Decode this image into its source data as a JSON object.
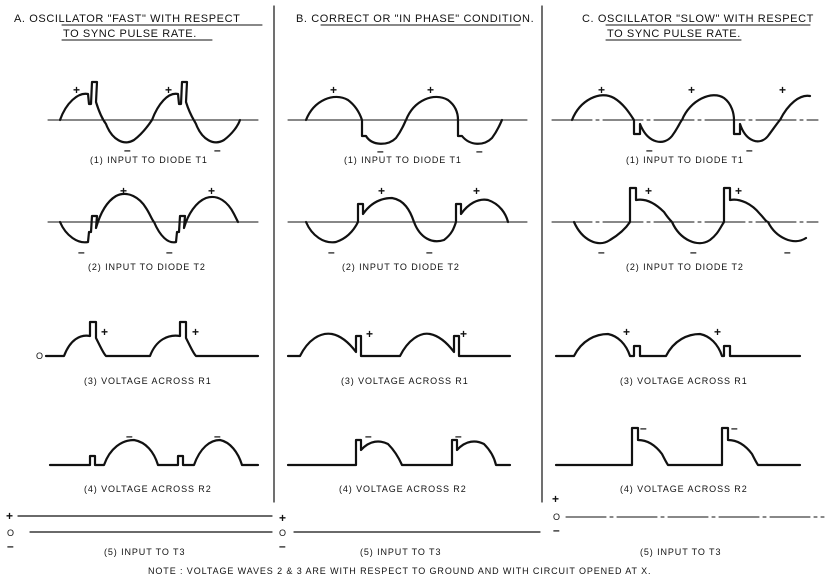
{
  "panels": [
    {
      "id": "A",
      "header_line1": "A.  OSCILLATOR \"FAST\" WITH RESPECT",
      "header_line2": "TO SYNC PULSE RATE.",
      "captions": [
        "(1)  INPUT  TO  DIODE  T1",
        "(2)  INPUT  TO  DIODE  T2",
        "(3)  VOLTAGE  ACROSS  R1",
        "(4)  VOLTAGE  ACROSS  R2",
        "(5)  INPUT  TO  T3"
      ]
    },
    {
      "id": "B",
      "header_line1": "B.  CORRECT OR \"IN PHASE\" CONDITION.",
      "captions": [
        "(1)  INPUT  TO  DIODE  T1",
        "(2)  INPUT  TO  DIODE  T2",
        "(3)  VOLTAGE  ACROSS  R1",
        "(4)  VOLTAGE  ACROSS  R2",
        "(5)  INPUT  TO  T3"
      ]
    },
    {
      "id": "C",
      "header_line1": "C.  OSCILLATOR \"SLOW\" WITH RESPECT",
      "header_line2": "TO SYNC PULSE RATE.",
      "captions": [
        "(1)  INPUT  TO  DIODE  T1",
        "(2)  INPUT  TO  DIODE  T2",
        "(3)  VOLTAGE  ACROSS  R1",
        "(4)  VOLTAGE  ACROSS  R2",
        "(5)  INPUT  TO  T3"
      ]
    }
  ],
  "symbols": {
    "plus": "+",
    "minus": "–",
    "zero": "O"
  },
  "note": "NOTE :  VOLTAGE  WAVES  2 & 3  ARE  WITH  RESPECT  TO  GROUND  AND  WITH  CIRCUIT  OPENED  AT  X."
}
